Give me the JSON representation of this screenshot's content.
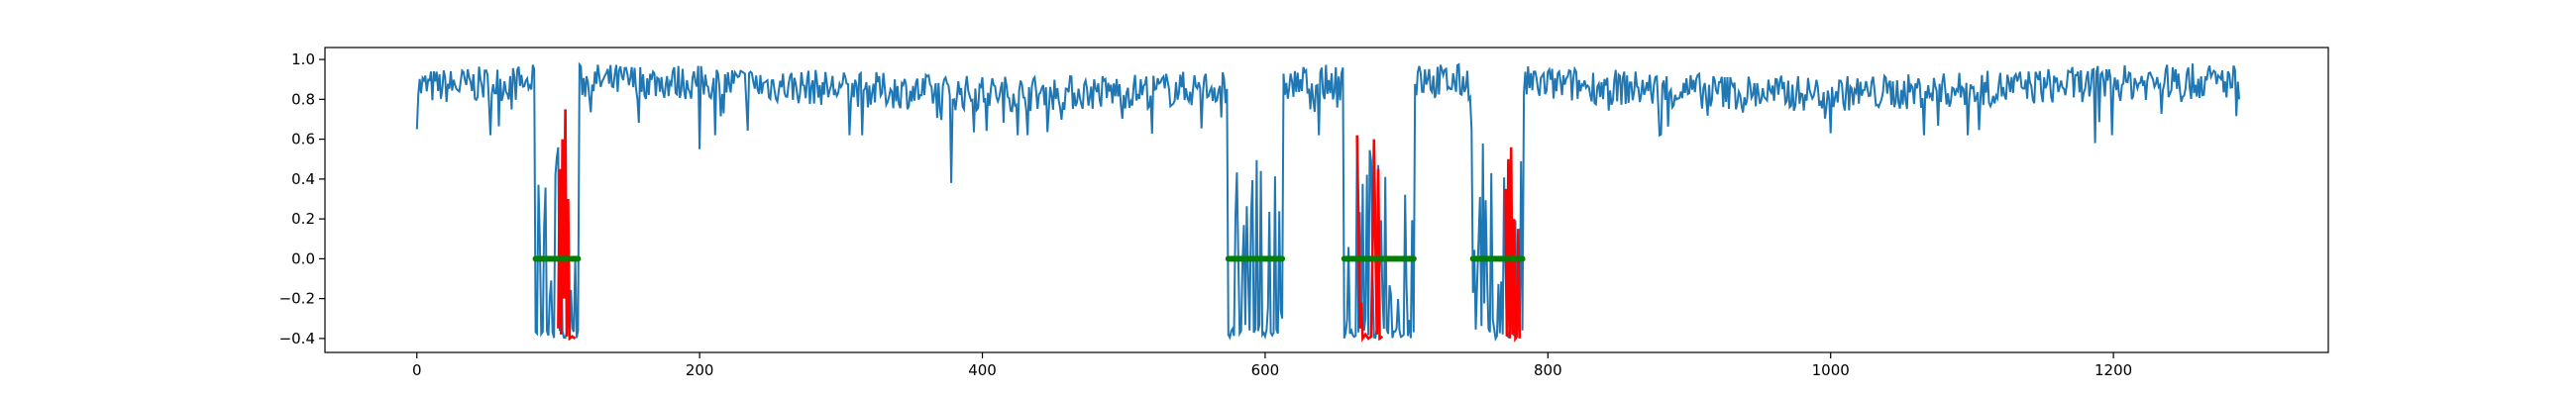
{
  "chart_data": {
    "type": "line",
    "title": "",
    "xlabel": "",
    "ylabel": "",
    "xlim": [
      -65,
      1352
    ],
    "ylim": [
      -0.47,
      1.06
    ],
    "grid": false,
    "legend": "none",
    "x_ticks": [
      0,
      200,
      400,
      600,
      800,
      1000,
      1200
    ],
    "x_tick_labels": [
      "0",
      "200",
      "400",
      "600",
      "800",
      "1000",
      "1200"
    ],
    "y_ticks": [
      -0.4,
      -0.2,
      0.0,
      0.2,
      0.4,
      0.6,
      0.8,
      1.0
    ],
    "y_tick_labels": [
      "−0.4",
      "−0.2",
      "0.0",
      "0.2",
      "0.4",
      "0.6",
      "0.8",
      "1.0"
    ],
    "n_points": 1290,
    "series": [
      {
        "color": "#1f77b4",
        "style": "line",
        "normal_level": [
          0.7,
          0.98
        ],
        "dropouts": [
          [
            378,
            0.38
          ],
          [
            200,
            0.55
          ],
          [
            1187,
            0.58
          ]
        ],
        "anomaly_ranges": [
          [
            84,
            114
          ],
          [
            574,
            612
          ],
          [
            656,
            705
          ],
          [
            747,
            782
          ]
        ],
        "anomaly_level": [
          -0.4,
          0.6
        ]
      },
      {
        "color": "#ff0000",
        "style": "line",
        "segments": [
          [
            [
              100,
              -0.35
            ],
            [
              101,
              0.45
            ],
            [
              102,
              -0.38
            ],
            [
              103,
              0.6
            ],
            [
              104,
              -0.2
            ],
            [
              105,
              0.75
            ],
            [
              106,
              -0.39
            ],
            [
              107,
              0.3
            ],
            [
              108,
              -0.4
            ],
            [
              110,
              -0.39
            ],
            [
              112,
              -0.4
            ]
          ],
          [
            [
              665,
              0.62
            ],
            [
              666,
              0.2
            ],
            [
              667,
              -0.35
            ],
            [
              668,
              -0.22
            ],
            [
              669,
              -0.4
            ],
            [
              671,
              -0.38
            ],
            [
              673,
              -0.4
            ],
            [
              675,
              -0.39
            ],
            [
              676,
              0.05
            ],
            [
              677,
              0.6
            ],
            [
              678,
              0.1
            ],
            [
              679,
              -0.38
            ],
            [
              680,
              0.45
            ],
            [
              681,
              -0.4
            ],
            [
              683,
              -0.39
            ]
          ],
          [
            [
              770,
              0.35
            ],
            [
              771,
              -0.39
            ],
            [
              772,
              0.5
            ],
            [
              773,
              -0.4
            ],
            [
              774,
              0.56
            ],
            [
              775,
              -0.38
            ],
            [
              776,
              0.2
            ],
            [
              777,
              -0.4
            ],
            [
              778,
              -0.39
            ],
            [
              779,
              0.15
            ],
            [
              780,
              -0.4
            ]
          ]
        ]
      },
      {
        "color": "#008000",
        "style": "markers-on-zero",
        "y": 0.0,
        "ranges": [
          [
            84,
            114
          ],
          [
            574,
            612
          ],
          [
            656,
            705
          ],
          [
            747,
            782
          ]
        ]
      }
    ]
  }
}
